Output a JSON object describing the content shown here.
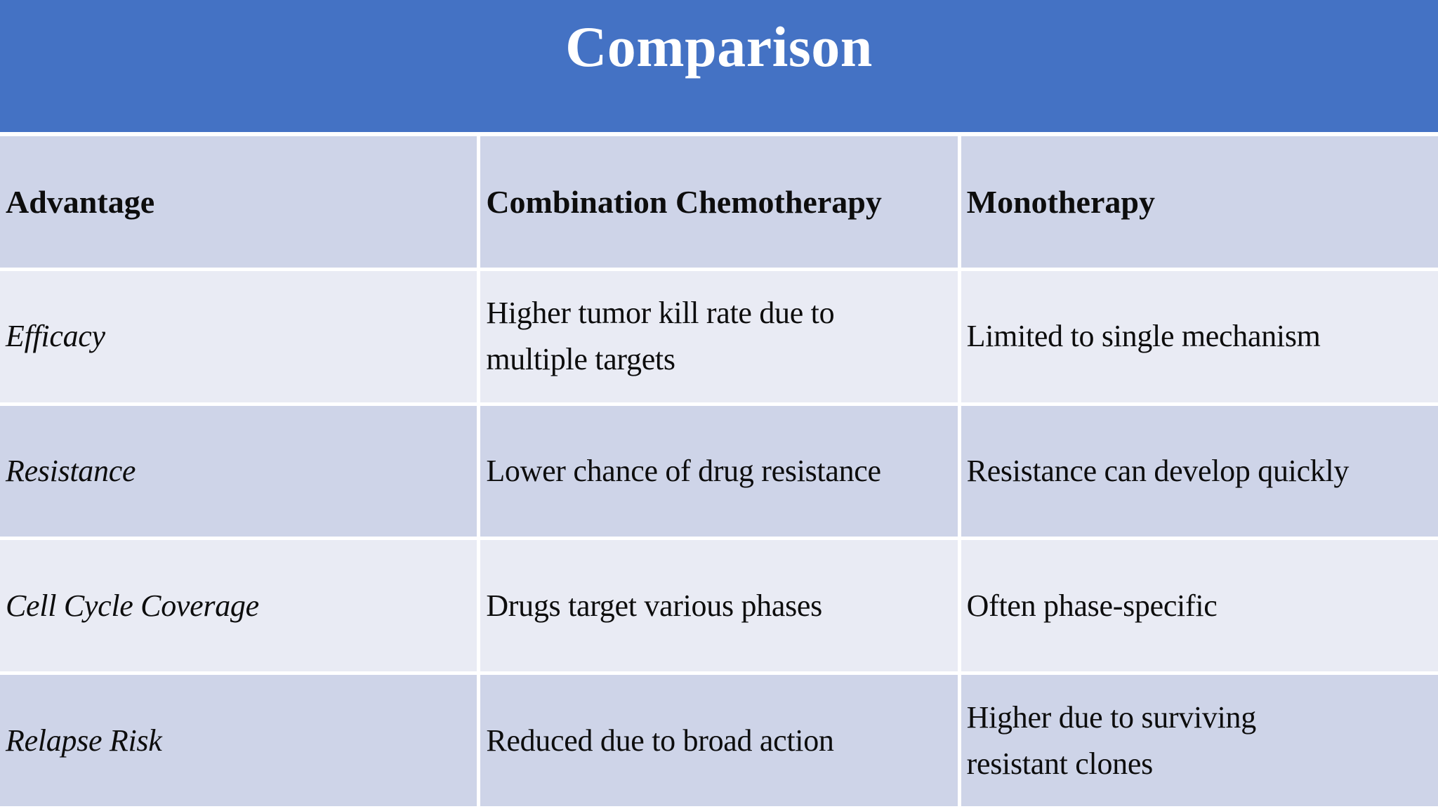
{
  "title": "Comparison",
  "colors": {
    "banner_blue": "#4472C4",
    "row_dark": "#CED4E8",
    "row_light": "#E9EBF4",
    "title_text": "#FFFFFF",
    "body_text": "#0D0D0D",
    "gridline": "#FFFFFF"
  },
  "table": {
    "headers": [
      "Advantage",
      "Combination Chemotherapy",
      "Monotherapy"
    ],
    "rows": [
      {
        "advantage": "Efficacy",
        "combination": "Higher tumor kill rate due to\nmultiple targets",
        "monotherapy": "Limited to single mechanism"
      },
      {
        "advantage": "Resistance",
        "combination": "Lower chance of drug resistance",
        "monotherapy": "Resistance can develop quickly"
      },
      {
        "advantage": "Cell Cycle Coverage",
        "combination": "Drugs target various phases",
        "monotherapy": "Often phase-specific"
      },
      {
        "advantage": "Relapse Risk",
        "combination": "Reduced due to broad action",
        "monotherapy": "Higher due to surviving\nresistant clones"
      }
    ]
  }
}
